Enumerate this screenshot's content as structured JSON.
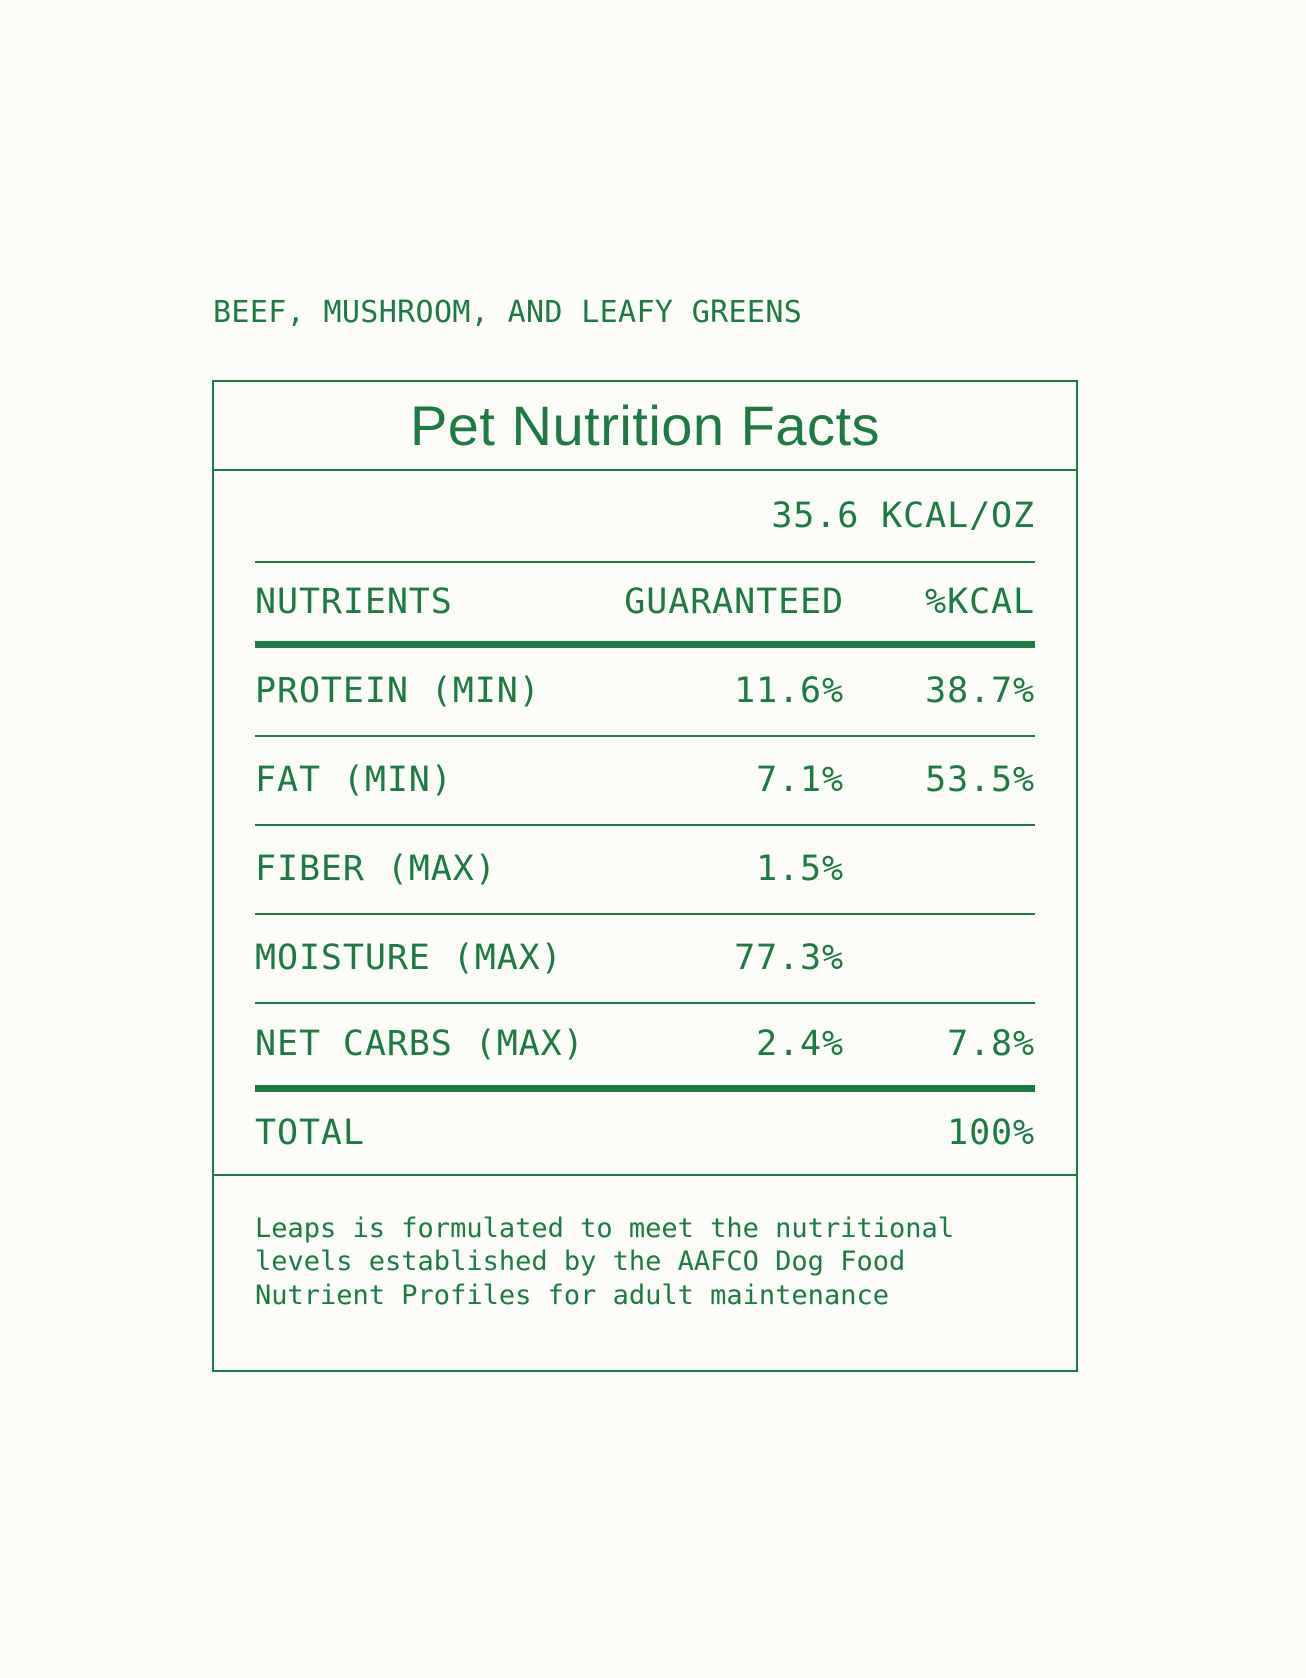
{
  "product_line": "BEEF, MUSHROOM, AND LEAFY GREENS",
  "label": {
    "title": "Pet Nutrition Facts",
    "calorie_content": "35.6 KCAL/OZ",
    "table": {
      "headers": [
        "NUTRIENTS",
        "GUARANTEED",
        "%KCAL"
      ],
      "rows": [
        {
          "nutrient": "PROTEIN (MIN)",
          "guaranteed": "11.6%",
          "kcal": "38.7%"
        },
        {
          "nutrient": "FAT (MIN)",
          "guaranteed": "7.1%",
          "kcal": "53.5%"
        },
        {
          "nutrient": "FIBER (MAX)",
          "guaranteed": "1.5%",
          "kcal": ""
        },
        {
          "nutrient": "MOISTURE (MAX)",
          "guaranteed": "77.3%",
          "kcal": ""
        },
        {
          "nutrient": "NET CARBS (MAX)",
          "guaranteed": "2.4%",
          "kcal": "7.8%"
        }
      ],
      "total": {
        "label": "TOTAL",
        "kcal": "100%"
      }
    },
    "footnote": "Leaps is formulated to meet the nutritional levels established by the AAFCO Dog Food Nutrient Profiles for adult maintenance"
  },
  "colors": {
    "green": "#1d7a43",
    "background": "#fcfcf9"
  }
}
